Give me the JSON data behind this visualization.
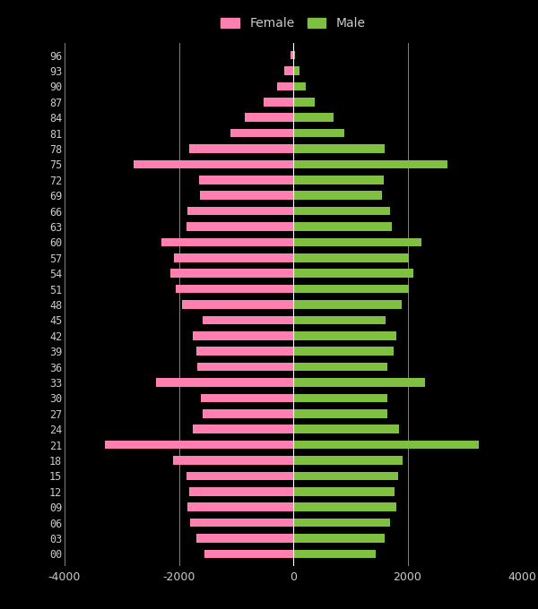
{
  "background_color": "#000000",
  "text_color": "#cccccc",
  "female_color": "#ff80b0",
  "male_color": "#80c040",
  "xlim": [
    -4000,
    4000
  ],
  "xticks": [
    -4000,
    -2000,
    0,
    2000,
    4000
  ],
  "age_groups": [
    "00",
    "03",
    "06",
    "09",
    "12",
    "15",
    "18",
    "21",
    "24",
    "27",
    "30",
    "33",
    "36",
    "39",
    "42",
    "45",
    "48",
    "51",
    "54",
    "57",
    "60",
    "63",
    "66",
    "69",
    "72",
    "75",
    "78",
    "81",
    "84",
    "87",
    "90",
    "93",
    "96"
  ],
  "female_values": [
    -1550,
    -1700,
    -1800,
    -1850,
    -1820,
    -1870,
    -2100,
    -3300,
    -1750,
    -1580,
    -1620,
    -2400,
    -1680,
    -1700,
    -1750,
    -1580,
    -1950,
    -2050,
    -2150,
    -2080,
    -2300,
    -1870,
    -1850,
    -1630,
    -1650,
    -2800,
    -1820,
    -1100,
    -850,
    -510,
    -290,
    -160,
    -45
  ],
  "male_values": [
    1450,
    1600,
    1700,
    1800,
    1780,
    1830,
    1920,
    3250,
    1850,
    1650,
    1650,
    2300,
    1650,
    1750,
    1800,
    1620,
    1900,
    2020,
    2100,
    2020,
    2250,
    1720,
    1700,
    1550,
    1580,
    2700,
    1600,
    900,
    700,
    380,
    220,
    110,
    35
  ]
}
